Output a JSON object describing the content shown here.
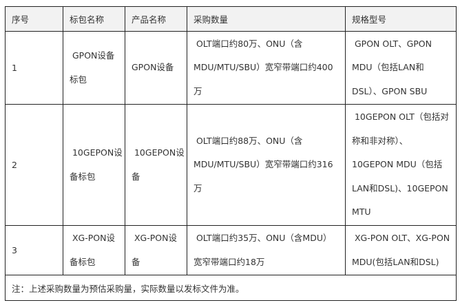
{
  "headers": [
    "序号",
    "标包名称",
    "产品名称",
    "采购数量",
    "规格型号"
  ],
  "rows": [
    {
      "no": "1",
      "package": [
        " GPON设备",
        "标包"
      ],
      "product": [
        "GPON设备"
      ],
      "quantity": [
        " OLT端口约80万、ONU（含",
        "MDU/MTU/SBU）宽窄带端口约400",
        "万"
      ],
      "spec": [
        " GPON OLT、GPON",
        "MDU（包括LAN和",
        "DSL）、GPON SBU"
      ]
    },
    {
      "no": "2",
      "package": [
        " 10GEPON设",
        "备标包"
      ],
      "product": [
        " 10GEPON设",
        "备"
      ],
      "quantity": [
        " OLT端口约88万、ONU（含",
        "MDU/MTU/SBU）宽窄带端口约316",
        "万"
      ],
      "spec": [
        " 10GEPON OLT（包括对",
        "称和非对称）、",
        "10GEPON MDU（包括",
        "LAN和DSL)、10GEPON",
        "MTU"
      ]
    },
    {
      "no": "3",
      "package": [
        " XG-PON设",
        "备标包"
      ],
      "product": [
        " XG-PON设",
        "备"
      ],
      "quantity": [
        " OLT端口约35万、ONU（含MDU）",
        "宽窄带端口约18万"
      ],
      "spec": [
        " XG-PON OLT、XG-PON",
        "MDU(包括LAN和DSL)"
      ]
    }
  ],
  "note": "注：上述采购数量为预估采购量，实际数量以发标文件为准。"
}
